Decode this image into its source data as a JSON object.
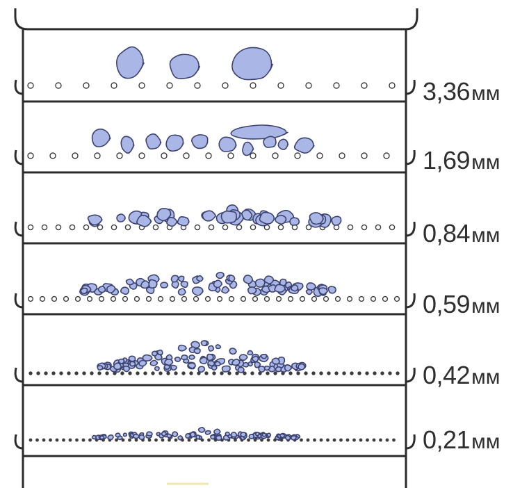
{
  "figure": "sieve-stack",
  "colors": {
    "frame": "#2b2b2b",
    "particle_fill": "#a9b6e6",
    "particle_stroke": "#3b4270",
    "hole": "#3c3c3c",
    "label": "#2f2f2f"
  },
  "sieves": [
    {
      "value": "3,36",
      "unit": "мм",
      "particle_size": "large",
      "particles_shown": 3
    },
    {
      "value": "1,69",
      "unit": "мм",
      "particle_size": "medium",
      "particles_shown": 11
    },
    {
      "value": "0,84",
      "unit": "мм",
      "particle_size": "small",
      "particles_shown": 30
    },
    {
      "value": "0,59",
      "unit": "мм",
      "particle_size": "fine",
      "particles_shown": 60
    },
    {
      "value": "0,42",
      "unit": "мм",
      "particle_size": "finer",
      "particles_shown": 90
    },
    {
      "value": "0,21",
      "unit": "мм",
      "particle_size": "finest",
      "particles_shown": 80
    }
  ]
}
